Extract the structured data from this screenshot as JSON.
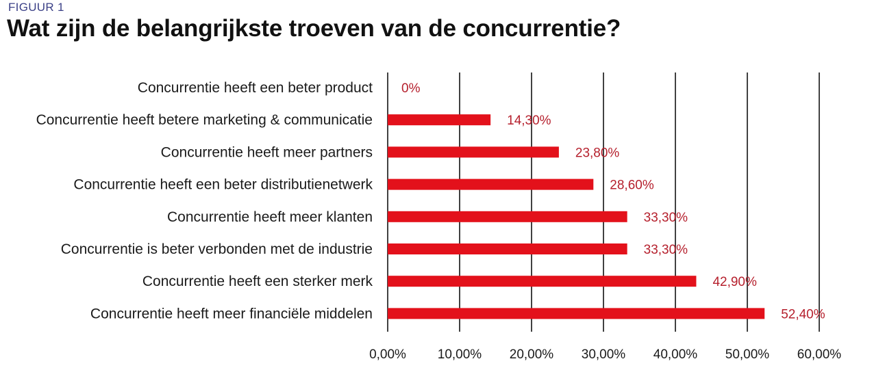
{
  "figure_label": "FIGUUR 1",
  "colors": {
    "bar": "#e3111b",
    "value_label": "#b51f2c",
    "grid": "#111111",
    "text": "#1a1a1a"
  },
  "chart_data": {
    "type": "bar",
    "orientation": "horizontal",
    "title": "Wat zijn de belangrijkste troeven van de concurrentie?",
    "categories": [
      "Concurrentie heeft een beter product",
      "Concurrentie heeft betere marketing & communicatie",
      "Concurrentie heeft meer partners",
      "Concurrentie heeft een beter distributienetwerk",
      "Concurrentie heeft meer klanten",
      "Concurrentie is beter verbonden met de industrie",
      "Concurrentie heeft een sterker merk",
      "Concurrentie heeft meer financiële middelen"
    ],
    "values": [
      0,
      14.3,
      23.8,
      28.6,
      33.3,
      33.3,
      42.9,
      52.4
    ],
    "value_labels": [
      "0%",
      "14,30%",
      "23,80%",
      "28,60%",
      "33,30%",
      "33,30%",
      "42,90%",
      "52,40%"
    ],
    "xlim": [
      0,
      60
    ],
    "x_ticks": [
      0,
      10,
      20,
      30,
      40,
      50,
      60
    ],
    "x_tick_labels": [
      "0,00%",
      "10,00%",
      "20,00%",
      "30,00%",
      "40,00%",
      "50,00%",
      "60,00%"
    ],
    "grid": "vertical",
    "legend": "none"
  }
}
